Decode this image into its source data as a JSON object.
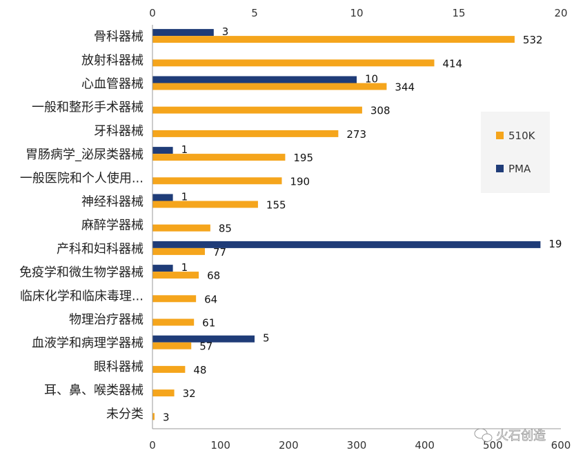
{
  "chart_data": {
    "type": "bar",
    "orientation": "horizontal",
    "categories": [
      "骨科器械",
      "放射科器械",
      "心血管器械",
      "一般和整形手术器械",
      "牙科器械",
      "胃肠病学_泌尿类器械",
      "一般医院和个人使用...",
      "神经科器械",
      "麻醉学器械",
      "产科和妇科器械",
      "免疫学和微生物学器械",
      "临床化学和临床毒理...",
      "物理治疗器械",
      "血液学和病理学器械",
      "眼科器械",
      "耳、鼻、喉类器械",
      "未分类"
    ],
    "series": [
      {
        "name": "PMA",
        "axis": "top",
        "color": "#1f3c78",
        "values": [
          3,
          null,
          10,
          null,
          null,
          1,
          null,
          1,
          null,
          19,
          1,
          null,
          null,
          5,
          null,
          null,
          null
        ]
      },
      {
        "name": "510K",
        "axis": "bottom",
        "color": "#f5a51c",
        "values": [
          532,
          414,
          344,
          308,
          273,
          195,
          190,
          155,
          85,
          77,
          68,
          64,
          61,
          57,
          48,
          32,
          3
        ]
      }
    ],
    "top_axis": {
      "range": [
        0,
        20
      ],
      "ticks": [
        0,
        5,
        10,
        15,
        20
      ]
    },
    "bottom_axis": {
      "range": [
        0,
        600
      ],
      "ticks": [
        0,
        100,
        200,
        300,
        400,
        500,
        600
      ]
    },
    "legend": {
      "placement": "right",
      "entries": [
        "510K",
        "PMA"
      ]
    },
    "grid": false
  },
  "watermark": {
    "text": "火石创造"
  }
}
